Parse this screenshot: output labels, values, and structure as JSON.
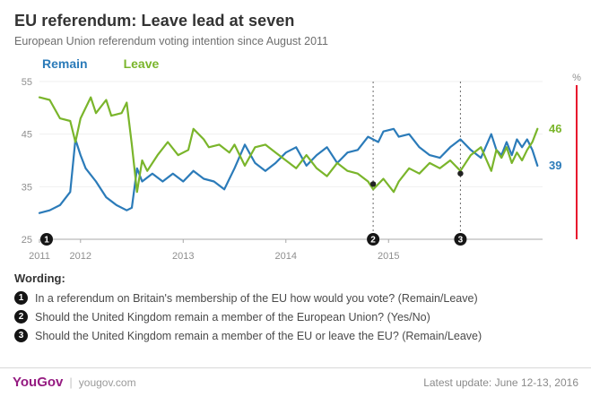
{
  "header": {
    "title": "EU referendum: Leave lead at seven",
    "subtitle": "European Union referendum voting intention since August 2011"
  },
  "legend": {
    "remain": "Remain",
    "leave": "Leave"
  },
  "chart_data": {
    "type": "line",
    "title": "EU referendum: Leave lead at seven",
    "subtitle": "European Union referendum voting intention since August 2011",
    "xlim": [
      2011.6,
      2016.5
    ],
    "ylim": [
      25,
      55
    ],
    "y_ticks": [
      55,
      45,
      35,
      25
    ],
    "x_ticks": [
      2011,
      2012,
      2013,
      2014,
      2015
    ],
    "x_tick_labels": [
      "2011",
      "2012",
      "2013",
      "2014",
      "2015"
    ],
    "right_axis_label": "%",
    "right_axis_color": "#e8112d",
    "grid": "light-horizontal",
    "legend_position": "top-left",
    "series": [
      {
        "name": "Remain",
        "color": "#2b7bb9",
        "end_label": "39",
        "points": [
          [
            2011.6,
            30
          ],
          [
            2011.7,
            30.5
          ],
          [
            2011.8,
            31.5
          ],
          [
            2011.9,
            34
          ],
          [
            2011.95,
            44
          ],
          [
            2012.0,
            41
          ],
          [
            2012.05,
            38.5
          ],
          [
            2012.15,
            36
          ],
          [
            2012.25,
            33
          ],
          [
            2012.35,
            31.5
          ],
          [
            2012.45,
            30.5
          ],
          [
            2012.5,
            31
          ],
          [
            2012.55,
            38.5
          ],
          [
            2012.6,
            36
          ],
          [
            2012.7,
            37.5
          ],
          [
            2012.8,
            36
          ],
          [
            2012.9,
            37.5
          ],
          [
            2013.0,
            36
          ],
          [
            2013.1,
            38
          ],
          [
            2013.2,
            36.5
          ],
          [
            2013.3,
            36
          ],
          [
            2013.4,
            34.5
          ],
          [
            2013.5,
            38.5
          ],
          [
            2013.6,
            43
          ],
          [
            2013.7,
            39.5
          ],
          [
            2013.8,
            38
          ],
          [
            2013.9,
            39.5
          ],
          [
            2014.0,
            41.5
          ],
          [
            2014.1,
            42.5
          ],
          [
            2014.2,
            39
          ],
          [
            2014.3,
            41
          ],
          [
            2014.4,
            42.5
          ],
          [
            2014.5,
            39.5
          ],
          [
            2014.6,
            41.5
          ],
          [
            2014.7,
            42
          ],
          [
            2014.8,
            44.5
          ],
          [
            2014.9,
            43.5
          ],
          [
            2014.95,
            45.5
          ],
          [
            2015.05,
            46
          ],
          [
            2015.1,
            44.5
          ],
          [
            2015.2,
            45
          ],
          [
            2015.3,
            42.5
          ],
          [
            2015.4,
            41
          ],
          [
            2015.5,
            40.5
          ],
          [
            2015.6,
            42.5
          ],
          [
            2015.7,
            44
          ],
          [
            2015.8,
            42
          ],
          [
            2015.9,
            40.5
          ],
          [
            2016.0,
            45
          ],
          [
            2016.05,
            42
          ],
          [
            2016.1,
            41
          ],
          [
            2016.15,
            43.5
          ],
          [
            2016.2,
            41
          ],
          [
            2016.25,
            44
          ],
          [
            2016.3,
            42.5
          ],
          [
            2016.35,
            44
          ],
          [
            2016.4,
            42
          ],
          [
            2016.45,
            39
          ]
        ]
      },
      {
        "name": "Leave",
        "color": "#7ab52b",
        "end_label": "46",
        "points": [
          [
            2011.6,
            52
          ],
          [
            2011.7,
            51.5
          ],
          [
            2011.8,
            48
          ],
          [
            2011.9,
            47.5
          ],
          [
            2011.95,
            43.5
          ],
          [
            2012.0,
            48
          ],
          [
            2012.1,
            52
          ],
          [
            2012.15,
            49
          ],
          [
            2012.25,
            51.5
          ],
          [
            2012.3,
            48.5
          ],
          [
            2012.4,
            49
          ],
          [
            2012.45,
            51
          ],
          [
            2012.5,
            43
          ],
          [
            2012.55,
            34
          ],
          [
            2012.6,
            40
          ],
          [
            2012.65,
            38
          ],
          [
            2012.75,
            41
          ],
          [
            2012.85,
            43.5
          ],
          [
            2012.95,
            41
          ],
          [
            2013.05,
            42
          ],
          [
            2013.1,
            46
          ],
          [
            2013.2,
            44
          ],
          [
            2013.25,
            42.5
          ],
          [
            2013.35,
            43
          ],
          [
            2013.45,
            41.5
          ],
          [
            2013.5,
            43
          ],
          [
            2013.6,
            39
          ],
          [
            2013.7,
            42.5
          ],
          [
            2013.8,
            43
          ],
          [
            2013.9,
            41.5
          ],
          [
            2014.0,
            40
          ],
          [
            2014.1,
            38.5
          ],
          [
            2014.2,
            41
          ],
          [
            2014.3,
            38.5
          ],
          [
            2014.4,
            37
          ],
          [
            2014.5,
            39.5
          ],
          [
            2014.6,
            38
          ],
          [
            2014.7,
            37.5
          ],
          [
            2014.8,
            36
          ],
          [
            2014.85,
            34.5
          ],
          [
            2014.95,
            36.5
          ],
          [
            2015.05,
            34
          ],
          [
            2015.1,
            36
          ],
          [
            2015.2,
            38.5
          ],
          [
            2015.3,
            37.5
          ],
          [
            2015.4,
            39.5
          ],
          [
            2015.5,
            38.5
          ],
          [
            2015.6,
            40
          ],
          [
            2015.7,
            38
          ],
          [
            2015.8,
            41
          ],
          [
            2015.9,
            42.5
          ],
          [
            2016.0,
            38
          ],
          [
            2016.05,
            42
          ],
          [
            2016.1,
            40.5
          ],
          [
            2016.15,
            42.5
          ],
          [
            2016.2,
            39.5
          ],
          [
            2016.25,
            41.5
          ],
          [
            2016.3,
            40
          ],
          [
            2016.35,
            42
          ],
          [
            2016.4,
            43.5
          ],
          [
            2016.45,
            46
          ]
        ]
      }
    ],
    "event_lines": [
      {
        "x": 2014.85,
        "label": "2",
        "dot_y": 35.5
      },
      {
        "x": 2015.7,
        "label": "3",
        "dot_y": 37.5
      }
    ],
    "start_marker": {
      "x": 2011.6,
      "label": "1"
    }
  },
  "wording": {
    "heading": "Wording:",
    "items": [
      {
        "num": "1",
        "text": "In a referendum on Britain's membership of the EU how would you vote? (Remain/Leave)"
      },
      {
        "num": "2",
        "text": "Should the United Kingdom remain a member of the European Union? (Yes/No)"
      },
      {
        "num": "3",
        "text": "Should the United Kingdom remain a member of the EU or leave the EU? (Remain/Leave)"
      }
    ]
  },
  "footer": {
    "brand": "YouGov",
    "site": "yougov.com",
    "update": "Latest update: June 12-13, 2016"
  }
}
